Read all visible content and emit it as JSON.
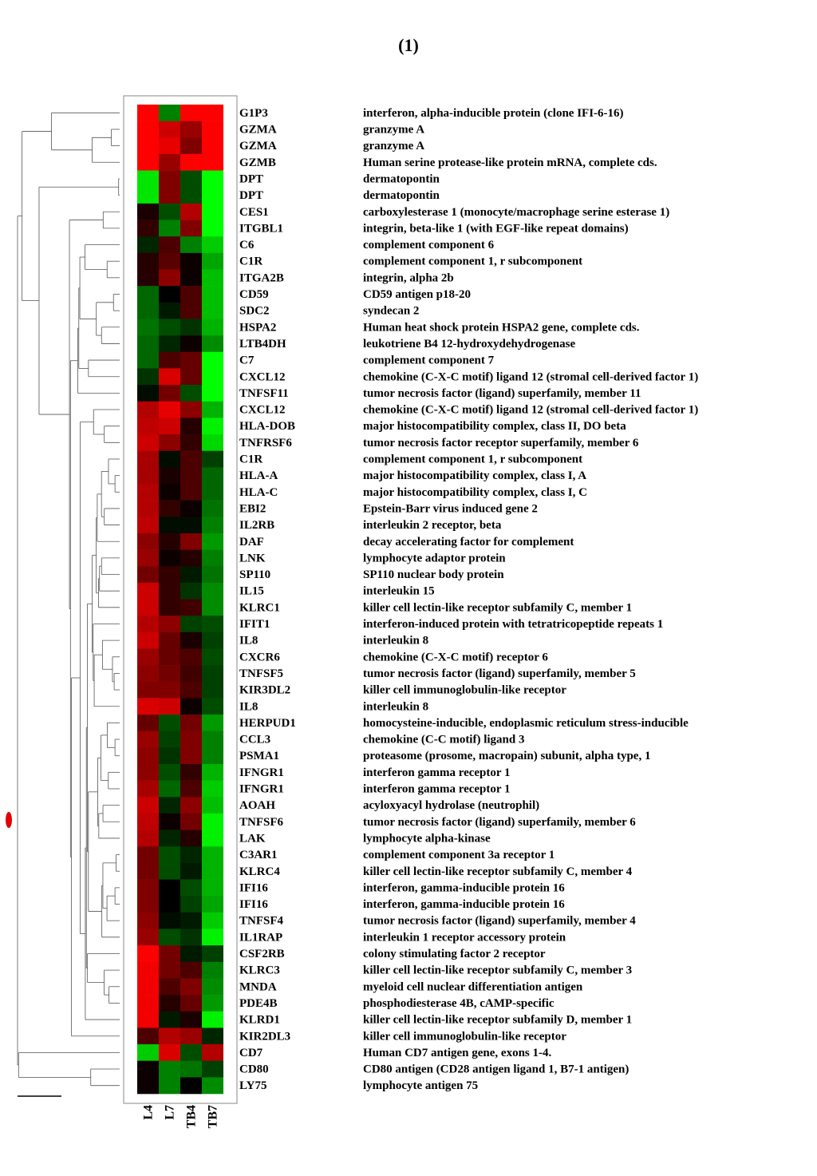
{
  "page": {
    "title": "(1)"
  },
  "chart_data": {
    "type": "heatmap",
    "columns": [
      "L4",
      "L7",
      "TB4",
      "TB7"
    ],
    "colorscale": {
      "low": "#00ff00",
      "mid": "#000000",
      "high": "#ff0000"
    },
    "value_range": [
      -1,
      1
    ],
    "rows": [
      {
        "gene": "G1P3",
        "description": "interferon, alpha-inducible protein (clone IFI-6-16)",
        "values": [
          1.0,
          -0.5,
          1.0,
          1.0
        ]
      },
      {
        "gene": "GZMA",
        "description": "granzyme A",
        "values": [
          1.0,
          0.8,
          0.6,
          1.0
        ]
      },
      {
        "gene": "GZMA",
        "description": "granzyme A",
        "values": [
          1.0,
          0.9,
          0.5,
          1.0
        ]
      },
      {
        "gene": "GZMB",
        "description": "Human serine protease-like protein mRNA, complete cds.",
        "values": [
          1.0,
          0.6,
          1.0,
          1.0
        ]
      },
      {
        "gene": "DPT",
        "description": "dermatopontin",
        "values": [
          -0.9,
          0.5,
          -0.3,
          -1.0
        ]
      },
      {
        "gene": "DPT",
        "description": "dermatopontin",
        "values": [
          -0.9,
          0.5,
          -0.3,
          -1.0
        ]
      },
      {
        "gene": "CES1",
        "description": "carboxylesterase 1 (monocyte/macrophage serine esterase 1)",
        "values": [
          0.1,
          -0.3,
          0.7,
          -1.0
        ]
      },
      {
        "gene": "ITGBL1",
        "description": "integrin, beta-like 1 (with EGF-like repeat domains)",
        "values": [
          0.2,
          -0.5,
          0.5,
          -1.0
        ]
      },
      {
        "gene": "C6",
        "description": "complement component 6",
        "values": [
          -0.15,
          0.3,
          -0.5,
          -0.8
        ]
      },
      {
        "gene": "C1R",
        "description": "complement component 1, r subcomponent",
        "values": [
          0.15,
          0.35,
          0.05,
          -0.65
        ]
      },
      {
        "gene": "ITGA2B",
        "description": "integrin, alpha 2b",
        "values": [
          0.15,
          0.55,
          0.05,
          -0.75
        ]
      },
      {
        "gene": "CD59",
        "description": "CD59 antigen p18-20",
        "values": [
          -0.4,
          0.0,
          0.3,
          -0.75
        ]
      },
      {
        "gene": "SDC2",
        "description": "syndecan 2",
        "values": [
          -0.4,
          -0.1,
          0.3,
          -0.75
        ]
      },
      {
        "gene": "HSPA2",
        "description": "Human heat shock protein HSPA2 gene, complete cds.",
        "values": [
          -0.45,
          -0.3,
          -0.2,
          -0.7
        ]
      },
      {
        "gene": "LTB4DH",
        "description": "leukotriene B4 12-hydroxydehydrogenase",
        "values": [
          -0.4,
          -0.15,
          0.05,
          -0.55
        ]
      },
      {
        "gene": "C7",
        "description": "complement component 7",
        "values": [
          -0.4,
          0.3,
          0.4,
          -1.0
        ]
      },
      {
        "gene": "CXCL12",
        "description": "chemokine (C-X-C motif) ligand 12 (stromal cell-derived factor 1)",
        "values": [
          -0.2,
          0.85,
          0.4,
          -1.0
        ]
      },
      {
        "gene": "TNFSF11",
        "description": "tumor necrosis factor (ligand) superfamily, member 11",
        "values": [
          -0.05,
          0.45,
          -0.3,
          -1.0
        ]
      },
      {
        "gene": "CXCL12",
        "description": "chemokine (C-X-C motif) ligand 12 (stromal cell-derived factor 1)",
        "values": [
          0.7,
          0.9,
          0.55,
          -0.7
        ]
      },
      {
        "gene": "HLA-DOB",
        "description": "major histocompatibility complex, class II, DO beta",
        "values": [
          0.75,
          0.8,
          0.15,
          -0.95
        ]
      },
      {
        "gene": "TNFRSF6",
        "description": "tumor necrosis factor receptor superfamily, member 6",
        "values": [
          0.8,
          0.55,
          0.2,
          -0.85
        ]
      },
      {
        "gene": "C1R",
        "description": "complement component 1, r subcomponent",
        "values": [
          0.65,
          -0.05,
          0.3,
          -0.25
        ]
      },
      {
        "gene": "HLA-A",
        "description": "major histocompatibility complex, class I, A",
        "values": [
          0.65,
          0.1,
          0.3,
          -0.4
        ]
      },
      {
        "gene": "HLA-C",
        "description": "major histocompatibility complex, class I, C",
        "values": [
          0.7,
          0.05,
          0.3,
          -0.4
        ]
      },
      {
        "gene": "EBI2",
        "description": "Epstein-Barr virus induced gene 2",
        "values": [
          0.7,
          0.2,
          0.05,
          -0.45
        ]
      },
      {
        "gene": "IL2RB",
        "description": "interleukin 2 receptor, beta",
        "values": [
          0.75,
          -0.05,
          -0.05,
          -0.5
        ]
      },
      {
        "gene": "DAF",
        "description": "decay accelerating factor for complement",
        "values": [
          0.55,
          0.15,
          0.5,
          -0.6
        ]
      },
      {
        "gene": "LNK",
        "description": "lymphocyte adaptor protein",
        "values": [
          0.6,
          0.05,
          0.15,
          -0.5
        ]
      },
      {
        "gene": "SP110",
        "description": "SP110 nuclear body protein",
        "values": [
          0.45,
          0.2,
          -0.1,
          -0.45
        ]
      },
      {
        "gene": "IL15",
        "description": "interleukin 15",
        "values": [
          0.8,
          0.2,
          -0.2,
          -0.55
        ]
      },
      {
        "gene": "KLRC1",
        "description": "killer cell lectin-like receptor subfamily C, member 1",
        "values": [
          0.8,
          0.2,
          0.25,
          -0.55
        ]
      },
      {
        "gene": "IFIT1",
        "description": "interferon-induced protein with tetratricopeptide repeats 1",
        "values": [
          0.7,
          0.55,
          -0.25,
          -0.3
        ]
      },
      {
        "gene": "IL8",
        "description": "interleukin 8",
        "values": [
          0.8,
          0.4,
          0.1,
          -0.25
        ]
      },
      {
        "gene": "CXCR6",
        "description": "chemokine (C-X-C motif) receptor 6",
        "values": [
          0.6,
          0.4,
          0.3,
          -0.3
        ]
      },
      {
        "gene": "TNFSF5",
        "description": "tumor necrosis factor (ligand) superfamily, member 5",
        "values": [
          0.55,
          0.45,
          0.25,
          -0.25
        ]
      },
      {
        "gene": "KIR3DL2",
        "description": "killer cell immunoglobulin-like receptor",
        "values": [
          0.5,
          0.5,
          0.3,
          -0.25
        ]
      },
      {
        "gene": "IL8",
        "description": "interleukin 8",
        "values": [
          0.85,
          0.8,
          0.05,
          -0.3
        ]
      },
      {
        "gene": "HERPUD1",
        "description": "homocysteine-inducible, endoplasmic reticulum stress-inducible",
        "values": [
          0.4,
          -0.3,
          0.45,
          -0.6
        ]
      },
      {
        "gene": "CCL3",
        "description": "chemokine (C-C motif) ligand 3",
        "values": [
          0.6,
          -0.25,
          0.5,
          -0.5
        ]
      },
      {
        "gene": "PSMA1",
        "description": "proteasome (prosome, macropain) subunit, alpha type, 1",
        "values": [
          0.55,
          -0.2,
          0.5,
          -0.5
        ]
      },
      {
        "gene": "IFNGR1",
        "description": "interferon gamma receptor 1",
        "values": [
          0.55,
          -0.3,
          0.2,
          -0.7
        ]
      },
      {
        "gene": "IFNGR1",
        "description": "interferon gamma receptor 1",
        "values": [
          0.65,
          -0.4,
          0.3,
          -0.8
        ]
      },
      {
        "gene": "AOAH",
        "description": "acyloxyacyl hydrolase (neutrophil)",
        "values": [
          0.8,
          -0.15,
          0.55,
          -0.75
        ]
      },
      {
        "gene": "TNFSF6",
        "description": "tumor necrosis factor (ligand) superfamily, member 6",
        "values": [
          0.75,
          0.05,
          0.45,
          -0.95
        ]
      },
      {
        "gene": "LAK",
        "description": "lymphocyte alpha-kinase",
        "values": [
          0.7,
          -0.15,
          0.15,
          -0.95
        ]
      },
      {
        "gene": "C3AR1",
        "description": "complement component 3a receptor 1",
        "values": [
          0.45,
          -0.3,
          -0.15,
          -0.7
        ]
      },
      {
        "gene": "KLRC4",
        "description": "killer cell lectin-like receptor subfamily C, member 4",
        "values": [
          0.45,
          -0.3,
          -0.1,
          -0.7
        ]
      },
      {
        "gene": "IFI16",
        "description": "interferon, gamma-inducible protein 16",
        "values": [
          0.5,
          0.0,
          -0.3,
          -0.7
        ]
      },
      {
        "gene": "IFI16",
        "description": "interferon, gamma-inducible protein 16",
        "values": [
          0.5,
          0.0,
          -0.25,
          -0.65
        ]
      },
      {
        "gene": "TNFSF4",
        "description": "tumor necrosis factor (ligand) superfamily, member 4",
        "values": [
          0.55,
          -0.05,
          -0.1,
          -0.8
        ]
      },
      {
        "gene": "IL1RAP",
        "description": "interleukin 1 receptor accessory protein",
        "values": [
          0.6,
          -0.3,
          -0.2,
          -0.95
        ]
      },
      {
        "gene": "CSF2RB",
        "description": "colony stimulating factor 2 receptor",
        "values": [
          1.0,
          0.45,
          -0.1,
          -0.25
        ]
      },
      {
        "gene": "KLRC3",
        "description": "killer cell lectin-like receptor subfamily C, member 3",
        "values": [
          0.95,
          0.45,
          0.3,
          -0.5
        ]
      },
      {
        "gene": "MNDA",
        "description": "myeloid cell nuclear differentiation antigen",
        "values": [
          0.95,
          0.3,
          0.5,
          -0.55
        ]
      },
      {
        "gene": "PDE4B",
        "description": "phosphodiesterase 4B, cAMP-specific",
        "values": [
          0.95,
          0.15,
          0.4,
          -0.6
        ]
      },
      {
        "gene": "KLRD1",
        "description": "killer cell lectin-like receptor subfamily D, member 1",
        "values": [
          0.95,
          -0.1,
          0.1,
          -0.95
        ]
      },
      {
        "gene": "KIR2DL3",
        "description": "killer cell immunoglobulin-like receptor",
        "values": [
          0.3,
          0.7,
          0.6,
          -0.15
        ]
      },
      {
        "gene": "CD7",
        "description": "Human CD7 antigen gene, exons 1-4.",
        "values": [
          -0.8,
          0.85,
          -0.3,
          0.7
        ]
      },
      {
        "gene": "CD80",
        "description": "CD80 antigen (CD28 antigen ligand 1, B7-1 antigen)",
        "values": [
          0.05,
          -0.5,
          -0.45,
          -0.25
        ]
      },
      {
        "gene": "LY75",
        "description": "lymphocyte antigen 75",
        "values": [
          0.05,
          -0.5,
          0.0,
          -0.55
        ]
      }
    ]
  }
}
